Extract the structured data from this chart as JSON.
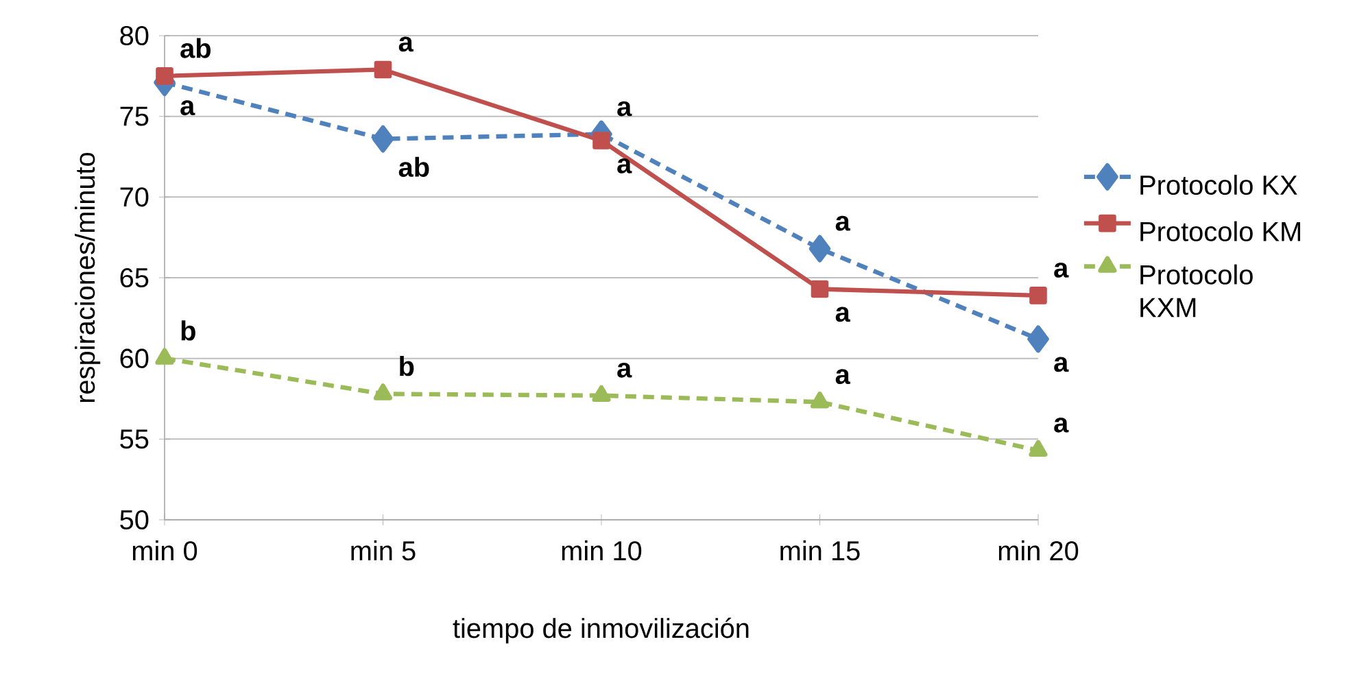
{
  "chart_data": {
    "type": "line",
    "xlabel": "tiempo de inmovilización",
    "ylabel": "respiraciones/minuto",
    "categories": [
      "min 0",
      "min 5",
      "min 10",
      "min 15",
      "min 20"
    ],
    "series": [
      {
        "name": "Protocolo KX",
        "color": "#4f81bd",
        "values": [
          77.1,
          73.6,
          73.9,
          66.8,
          61.2
        ],
        "marker": "diamond",
        "line_style": "dashed"
      },
      {
        "name": "Protocolo KM",
        "color": "#c0504d",
        "values": [
          77.5,
          77.9,
          73.5,
          64.3,
          63.9
        ],
        "marker": "square",
        "line_style": "solid"
      },
      {
        "name": "Protocolo KXM",
        "color": "#9bbb59",
        "values": [
          60.0,
          57.8,
          57.7,
          57.3,
          54.3
        ],
        "marker": "triangle",
        "line_style": "dashed"
      }
    ],
    "ylim": [
      50,
      80
    ],
    "yticks": [
      50,
      55,
      60,
      65,
      70,
      75,
      80
    ],
    "grid": "y",
    "legend": "right",
    "annotations": [
      {
        "text": "ab",
        "x": "min 0",
        "y": 77.5
      },
      {
        "text": "a",
        "x": "min 0",
        "y": 77.1
      },
      {
        "text": "b",
        "x": "min 0",
        "y": 60.0
      },
      {
        "text": "a",
        "x": "min 5",
        "y": 77.9
      },
      {
        "text": "ab",
        "x": "min 5",
        "y": 73.6
      },
      {
        "text": "b",
        "x": "min 5",
        "y": 57.8
      },
      {
        "text": "a",
        "x": "min 10",
        "y": 73.9
      },
      {
        "text": "a",
        "x": "min 10",
        "y": 73.5
      },
      {
        "text": "a",
        "x": "min 10",
        "y": 57.7
      },
      {
        "text": "a",
        "x": "min 15",
        "y": 66.8
      },
      {
        "text": "a",
        "x": "min 15",
        "y": 64.3
      },
      {
        "text": "a",
        "x": "min 15",
        "y": 57.3
      },
      {
        "text": "a",
        "x": "min 20",
        "y": 63.9
      },
      {
        "text": "a",
        "x": "min 20",
        "y": 61.2
      },
      {
        "text": "a",
        "x": "min 20",
        "y": 54.3
      }
    ]
  }
}
